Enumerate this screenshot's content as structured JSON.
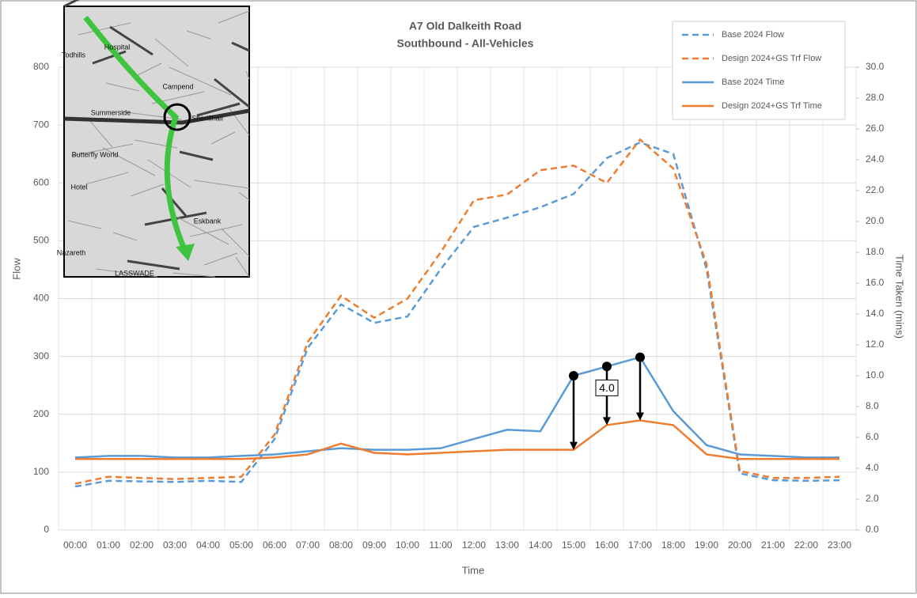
{
  "chart_data": {
    "type": "line",
    "title": "A7 Old Dalkeith Road",
    "subtitle": "Southbound - All-Vehicles",
    "x_label": "Time",
    "y_label": "Flow",
    "y2_label": "Time Taken (mins)",
    "categories": [
      "00:00",
      "01:00",
      "02:00",
      "03:00",
      "04:00",
      "05:00",
      "06:00",
      "07:00",
      "08:00",
      "09:00",
      "10:00",
      "11:00",
      "12:00",
      "13:00",
      "14:00",
      "15:00",
      "16:00",
      "17:00",
      "18:00",
      "19:00",
      "20:00",
      "21:00",
      "22:00",
      "23:00"
    ],
    "ylim": [
      0,
      800
    ],
    "yticks": [
      0,
      100,
      200,
      300,
      400,
      500,
      600,
      700,
      800
    ],
    "y2lim": [
      0,
      30
    ],
    "y2ticks": [
      {
        "value": 0,
        "label": "0.0"
      },
      {
        "value": 2,
        "label": "2.0"
      },
      {
        "value": 4,
        "label": "4.0"
      },
      {
        "value": 6,
        "label": "6.0"
      },
      {
        "value": 8,
        "label": "8.0"
      },
      {
        "value": 10,
        "label": "10.0"
      },
      {
        "value": 12,
        "label": "12.0"
      },
      {
        "value": 14,
        "label": "14.0"
      },
      {
        "value": 16,
        "label": "16.0"
      },
      {
        "value": 18,
        "label": "18.0"
      },
      {
        "value": 20,
        "label": "20.0"
      },
      {
        "value": 22,
        "label": "22.0"
      },
      {
        "value": 24,
        "label": "24.0"
      },
      {
        "value": 26,
        "label": "26.0"
      },
      {
        "value": 28,
        "label": "28.0"
      },
      {
        "value": 30,
        "label": "30.0"
      }
    ],
    "grid": true,
    "legend": "top-right",
    "series": [
      {
        "name": "Base 2024 Flow",
        "color": "#5b9bd5",
        "dashed": true,
        "values": [
          75,
          85,
          84,
          83,
          85,
          83,
          157,
          315,
          390,
          358,
          369,
          451,
          524,
          540,
          558,
          581,
          643,
          670,
          650,
          451,
          98,
          86,
          85,
          86
        ]
      },
      {
        "name": "Design 2024+GS Trf Flow",
        "color": "#ed7d31",
        "dashed": true,
        "values": [
          80,
          92,
          90,
          88,
          90,
          92,
          165,
          325,
          405,
          367,
          400,
          480,
          570,
          580,
          622,
          630,
          600,
          675,
          625,
          460,
          102,
          90,
          90,
          92
        ]
      },
      {
        "name": "Base 2024 Time",
        "color": "#5b9bd5",
        "dashed": false,
        "axis": "y2",
        "values": [
          4.7,
          4.8,
          4.8,
          4.7,
          4.7,
          4.8,
          4.9,
          5.1,
          5.3,
          5.2,
          5.2,
          5.3,
          5.9,
          6.5,
          6.4,
          10.0,
          10.6,
          11.2,
          7.7,
          5.5,
          4.9,
          4.8,
          4.7,
          4.7
        ]
      },
      {
        "name": "Design 2024+GS Trf Time",
        "color": "#ed7d31",
        "dashed": false,
        "axis": "y2",
        "values": [
          4.6,
          4.6,
          4.6,
          4.6,
          4.6,
          4.6,
          4.7,
          4.9,
          5.6,
          5.0,
          4.9,
          5.0,
          5.1,
          5.2,
          5.2,
          5.2,
          6.8,
          7.1,
          6.8,
          4.9,
          4.6,
          4.6,
          4.6,
          4.6
        ]
      }
    ],
    "annotation": {
      "text": "4.0",
      "categories": [
        "15:00",
        "16:00",
        "17:00"
      ]
    },
    "map_labels": [
      "Summerside",
      "Butterfly World",
      "Hotel",
      "Hospital",
      "Campend",
      "Sheriffhall",
      "Todhills",
      "Nazareth",
      "LASSWADE",
      "Eskbank"
    ]
  }
}
